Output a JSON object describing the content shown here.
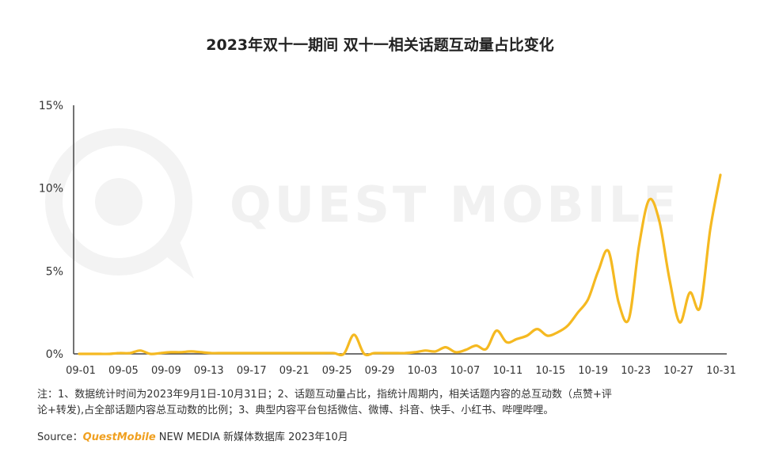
{
  "chart_data": {
    "type": "line",
    "title": "2023年双十一期间 双十一相关话题互动量占比变化",
    "y_ticks": [
      "15%",
      "10%",
      "5%",
      "0%"
    ],
    "ylim": [
      0,
      15
    ],
    "x_tick_labels": [
      "09-01",
      "09-05",
      "09-09",
      "09-13",
      "09-17",
      "09-21",
      "09-25",
      "09-29",
      "10-03",
      "10-07",
      "10-11",
      "10-15",
      "10-19",
      "10-23",
      "10-27",
      "10-31"
    ],
    "grid": false,
    "color": "#f5b921",
    "series": [
      {
        "values": [
          0.0,
          0.0,
          0.0,
          0.0,
          0.05,
          0.05,
          0.2,
          0.0,
          0.05,
          0.1,
          0.1,
          0.15,
          0.1,
          0.05,
          0.05,
          0.05,
          0.05,
          0.05,
          0.05,
          0.05,
          0.05,
          0.05,
          0.05,
          0.05,
          0.05,
          0.05,
          0.0,
          1.15,
          0.0,
          0.05,
          0.05,
          0.05,
          0.05,
          0.1,
          0.2,
          0.15,
          0.4,
          0.1,
          0.25,
          0.5,
          0.3,
          1.4,
          0.7,
          0.9,
          1.1,
          1.5,
          1.1,
          1.3,
          1.7,
          2.5,
          3.3,
          5.0,
          6.2,
          3.1,
          2.1,
          6.5,
          9.3,
          8.0,
          4.5,
          1.9,
          3.7,
          2.8,
          7.5,
          10.8
        ]
      }
    ]
  },
  "watermark": {
    "text": "QUEST MOBILE"
  },
  "notes": {
    "line1": "注：1、数据统计时间为2023年9月1日-10月31日；2、话题互动量占比，指统计周期内，相关话题内容的总互动数（点赞+评",
    "line2": "论+转发),占全部话题内容总互动数的比例；3、典型内容平台包括微信、微博、抖音、快手、小红书、哔哩哔哩。"
  },
  "source": {
    "label": "Source：",
    "brand": "QuestMobile",
    "rest": " NEW MEDIA 新媒体数据库 2023年10月"
  }
}
